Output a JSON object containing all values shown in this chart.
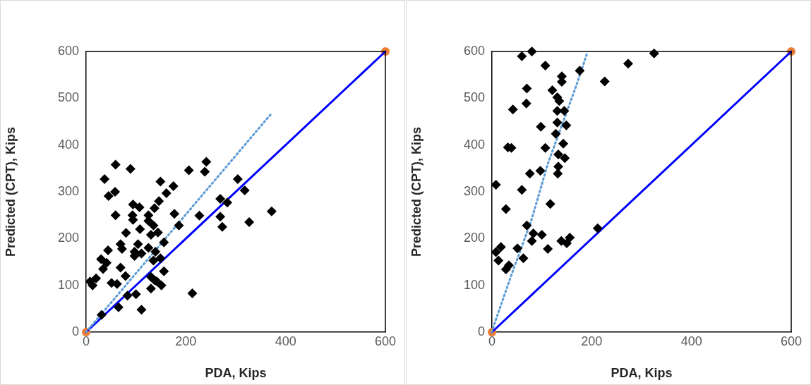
{
  "chart_data": [
    {
      "type": "scatter",
      "xlabel": "PDA, Kips",
      "ylabel": "Predicted (CPT), Kips",
      "xlim": [
        0,
        600
      ],
      "ylim": [
        0,
        600
      ],
      "xticks": [
        0,
        200,
        400,
        600
      ],
      "yticks": [
        0,
        100,
        200,
        300,
        400,
        500,
        600
      ],
      "grid": false,
      "legend": false,
      "series": [
        {
          "marker": "diamond",
          "color": "#000000",
          "x": [
            59,
            89,
            37,
            149,
            175,
            206,
            241,
            238,
            304,
            318,
            372,
            327,
            273,
            269,
            269,
            283,
            58,
            45,
            161,
            146,
            94,
            107,
            137,
            59,
            93,
            177,
            94,
            125,
            125,
            108,
            135,
            186,
            227,
            80,
            144,
            130,
            156,
            69,
            72,
            104,
            125,
            97,
            44,
            139,
            111,
            97,
            135,
            149,
            30,
            41,
            34,
            69,
            79,
            156,
            130,
            137,
            8,
            20,
            13,
            51,
            62,
            151,
            142,
            130,
            100,
            83,
            213,
            65,
            111,
            31
          ],
          "values": [
            358,
            349,
            327,
            322,
            312,
            346,
            364,
            343,
            327,
            303,
            258,
            235,
            225,
            247,
            285,
            277,
            300,
            291,
            297,
            280,
            273,
            267,
            265,
            250,
            250,
            253,
            240,
            250,
            238,
            220,
            228,
            228,
            249,
            212,
            213,
            208,
            192,
            188,
            178,
            188,
            180,
            172,
            175,
            172,
            168,
            163,
            153,
            158,
            156,
            148,
            135,
            138,
            120,
            130,
            118,
            111,
            108,
            115,
            100,
            105,
            103,
            100,
            108,
            93,
            81,
            78,
            83,
            53,
            48,
            37
          ]
        },
        {
          "type": "line",
          "marker": "none",
          "line_style": "dotted",
          "color": "#5b9bd5",
          "x": [
            0,
            372
          ],
          "values": [
            0,
            468
          ]
        },
        {
          "type": "line",
          "marker": "none",
          "line_style": "solid",
          "color": "#0000ff",
          "x": [
            0,
            600
          ],
          "values": [
            0,
            600
          ]
        },
        {
          "type": "scatter",
          "marker": "circle",
          "color": "#ed7d31",
          "x": [
            0,
            600
          ],
          "values": [
            0,
            600
          ]
        }
      ]
    },
    {
      "type": "scatter",
      "xlabel": "PDA, Kips",
      "ylabel": "Predicted (CPT), Kips",
      "xlim": [
        0,
        600
      ],
      "ylim": [
        0,
        600
      ],
      "xticks": [
        0,
        200,
        400,
        600
      ],
      "yticks": [
        0,
        100,
        200,
        300,
        400,
        500,
        600
      ],
      "grid": false,
      "legend": false,
      "series": [
        {
          "marker": "diamond",
          "color": "#000000",
          "x": [
            80,
            60,
            325,
            273,
            107,
            226,
            176,
            140,
            140,
            70,
            121,
            131,
            135,
            69,
            42,
            131,
            145,
            131,
            149,
            98,
            128,
            143,
            32,
            39,
            107,
            133,
            146,
            133,
            132,
            97,
            76,
            8,
            60,
            117,
            28,
            212,
            70,
            83,
            100,
            80,
            139,
            156,
            150,
            18,
            8,
            51,
            112,
            63,
            13,
            34,
            28
          ],
          "values": [
            600,
            590,
            596,
            574,
            570,
            536,
            559,
            547,
            535,
            521,
            517,
            502,
            494,
            489,
            476,
            473,
            473,
            448,
            442,
            439,
            424,
            403,
            395,
            394,
            394,
            380,
            372,
            354,
            339,
            345,
            339,
            315,
            304,
            274,
            263,
            222,
            228,
            211,
            208,
            195,
            195,
            202,
            190,
            182,
            171,
            179,
            178,
            158,
            153,
            143,
            134
          ]
        },
        {
          "type": "line",
          "marker": "none",
          "line_style": "dotted",
          "color": "#5b9bd5",
          "x": [
            0,
            4,
            39,
            79,
            112,
            145,
            169,
            191
          ],
          "values": [
            0,
            15,
            122,
            239,
            360,
            456,
            527,
            597
          ]
        },
        {
          "type": "line",
          "marker": "none",
          "line_style": "solid",
          "color": "#0000ff",
          "x": [
            0,
            600
          ],
          "values": [
            0,
            600
          ]
        },
        {
          "type": "scatter",
          "marker": "circle",
          "color": "#ed7d31",
          "x": [
            0,
            600
          ],
          "values": [
            0,
            600
          ]
        }
      ]
    }
  ]
}
